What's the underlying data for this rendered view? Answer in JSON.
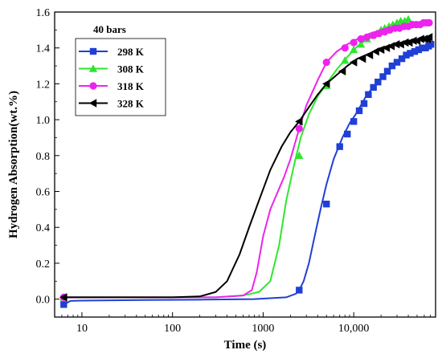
{
  "chart_data": {
    "type": "line",
    "title": "",
    "xlabel": "Time (s)",
    "ylabel": "Hydrogen Absorption(wt.%)",
    "xscale": "log",
    "xlim": [
      5,
      80000
    ],
    "ylim": [
      -0.1,
      1.6
    ],
    "x_ticks": [
      {
        "value": 10,
        "label": "10"
      },
      {
        "value": 100,
        "label": "100"
      },
      {
        "value": 1000,
        "label": "1000"
      },
      {
        "value": 10000,
        "label": "10,000"
      }
    ],
    "y_ticks": [
      {
        "value": 0.0,
        "label": "0.0"
      },
      {
        "value": 0.2,
        "label": "0.2"
      },
      {
        "value": 0.4,
        "label": "0.4"
      },
      {
        "value": 0.6,
        "label": "0.6"
      },
      {
        "value": 0.8,
        "label": "0.8"
      },
      {
        "value": 1.0,
        "label": "1.0"
      },
      {
        "value": 1.2,
        "label": "1.2"
      },
      {
        "value": 1.4,
        "label": "1.4"
      },
      {
        "value": 1.6,
        "label": "1.6"
      }
    ],
    "legend_title": "40 bars",
    "legend_position": "top-left",
    "series": [
      {
        "name": "298 K",
        "color": "#1f3fd6",
        "marker": "square",
        "line": [
          [
            6.3,
            -0.03
          ],
          [
            7.5,
            -0.01
          ],
          [
            10,
            -0.008
          ],
          [
            50,
            -0.005
          ],
          [
            200,
            -0.003
          ],
          [
            800,
            0.0
          ],
          [
            1800,
            0.01
          ],
          [
            2300,
            0.03
          ],
          [
            2500,
            0.05
          ],
          [
            2800,
            0.1
          ],
          [
            3200,
            0.2
          ],
          [
            3700,
            0.35
          ],
          [
            4300,
            0.5
          ],
          [
            5000,
            0.64
          ],
          [
            6000,
            0.78
          ],
          [
            7500,
            0.9
          ],
          [
            9000,
            0.98
          ],
          [
            10500,
            1.03
          ],
          [
            12000,
            1.08
          ],
          [
            14000,
            1.14
          ],
          [
            17000,
            1.19
          ],
          [
            20000,
            1.23
          ],
          [
            25000,
            1.28
          ],
          [
            32000,
            1.33
          ],
          [
            40000,
            1.37
          ],
          [
            50000,
            1.39
          ],
          [
            60000,
            1.41
          ],
          [
            70000,
            1.42
          ]
        ],
        "markers": [
          [
            6.3,
            -0.03
          ],
          [
            2500,
            0.05
          ],
          [
            5000,
            0.53
          ],
          [
            7000,
            0.85
          ],
          [
            8500,
            0.92
          ],
          [
            10000,
            0.99
          ],
          [
            11500,
            1.05
          ],
          [
            13000,
            1.09
          ],
          [
            14500,
            1.14
          ],
          [
            16500,
            1.18
          ],
          [
            18500,
            1.21
          ],
          [
            21000,
            1.24
          ],
          [
            23500,
            1.27
          ],
          [
            26500,
            1.3
          ],
          [
            30000,
            1.32
          ],
          [
            34000,
            1.34
          ],
          [
            38000,
            1.36
          ],
          [
            42000,
            1.37
          ],
          [
            47000,
            1.38
          ],
          [
            52000,
            1.39
          ],
          [
            57000,
            1.4
          ],
          [
            62000,
            1.4
          ],
          [
            67000,
            1.41
          ],
          [
            71000,
            1.42
          ]
        ]
      },
      {
        "name": "308 K",
        "color": "#2ee62e",
        "marker": "triangle",
        "line": [
          [
            6.3,
            0.01
          ],
          [
            20,
            0.01
          ],
          [
            100,
            0.01
          ],
          [
            300,
            0.01
          ],
          [
            600,
            0.02
          ],
          [
            900,
            0.04
          ],
          [
            1200,
            0.1
          ],
          [
            1500,
            0.3
          ],
          [
            1800,
            0.55
          ],
          [
            2200,
            0.75
          ],
          [
            2600,
            0.9
          ],
          [
            3200,
            1.03
          ],
          [
            4000,
            1.13
          ],
          [
            5000,
            1.2
          ],
          [
            6500,
            1.28
          ],
          [
            8500,
            1.35
          ],
          [
            11000,
            1.41
          ],
          [
            15000,
            1.46
          ],
          [
            20000,
            1.5
          ],
          [
            28000,
            1.53
          ],
          [
            35000,
            1.55
          ],
          [
            40000,
            1.56
          ]
        ],
        "markers": [
          [
            6.3,
            0.01
          ],
          [
            2500,
            0.8
          ],
          [
            5000,
            1.19
          ],
          [
            8000,
            1.33
          ],
          [
            10000,
            1.39
          ],
          [
            12000,
            1.42
          ],
          [
            14000,
            1.45
          ],
          [
            16000,
            1.47
          ],
          [
            18000,
            1.48
          ],
          [
            20000,
            1.5
          ],
          [
            22000,
            1.51
          ],
          [
            24500,
            1.52
          ],
          [
            27000,
            1.53
          ],
          [
            30000,
            1.54
          ],
          [
            33000,
            1.55
          ],
          [
            36500,
            1.55
          ],
          [
            40000,
            1.56
          ]
        ]
      },
      {
        "name": "318 K",
        "color": "#ee22ee",
        "marker": "circle",
        "line": [
          [
            6.3,
            0.01
          ],
          [
            20,
            0.01
          ],
          [
            100,
            0.01
          ],
          [
            300,
            0.01
          ],
          [
            600,
            0.02
          ],
          [
            750,
            0.05
          ],
          [
            850,
            0.15
          ],
          [
            1000,
            0.35
          ],
          [
            1200,
            0.5
          ],
          [
            1400,
            0.58
          ],
          [
            1700,
            0.68
          ],
          [
            2000,
            0.78
          ],
          [
            2500,
            0.95
          ],
          [
            3000,
            1.08
          ],
          [
            4000,
            1.22
          ],
          [
            5000,
            1.32
          ],
          [
            6500,
            1.38
          ],
          [
            8500,
            1.42
          ],
          [
            11000,
            1.45
          ],
          [
            15000,
            1.48
          ],
          [
            20000,
            1.5
          ],
          [
            28000,
            1.52
          ],
          [
            40000,
            1.53
          ],
          [
            55000,
            1.54
          ],
          [
            68000,
            1.55
          ]
        ],
        "markers": [
          [
            6.3,
            0.01
          ],
          [
            2500,
            0.95
          ],
          [
            5000,
            1.32
          ],
          [
            8000,
            1.4
          ],
          [
            10000,
            1.43
          ],
          [
            12000,
            1.45
          ],
          [
            14000,
            1.46
          ],
          [
            16500,
            1.47
          ],
          [
            19000,
            1.48
          ],
          [
            22000,
            1.49
          ],
          [
            25000,
            1.5
          ],
          [
            28500,
            1.51
          ],
          [
            32000,
            1.51
          ],
          [
            36000,
            1.52
          ],
          [
            40000,
            1.52
          ],
          [
            44500,
            1.53
          ],
          [
            49000,
            1.53
          ],
          [
            54000,
            1.53
          ],
          [
            59000,
            1.54
          ],
          [
            64000,
            1.54
          ],
          [
            68000,
            1.54
          ]
        ]
      },
      {
        "name": "328 K",
        "color": "#000000",
        "marker": "triangle-left",
        "line": [
          [
            6.3,
            0.01
          ],
          [
            20,
            0.01
          ],
          [
            100,
            0.01
          ],
          [
            200,
            0.015
          ],
          [
            300,
            0.04
          ],
          [
            400,
            0.1
          ],
          [
            550,
            0.25
          ],
          [
            700,
            0.4
          ],
          [
            900,
            0.55
          ],
          [
            1200,
            0.72
          ],
          [
            1600,
            0.85
          ],
          [
            2000,
            0.93
          ],
          [
            2500,
            0.99
          ],
          [
            3200,
            1.07
          ],
          [
            4000,
            1.14
          ],
          [
            5000,
            1.2
          ],
          [
            6500,
            1.25
          ],
          [
            8500,
            1.3
          ],
          [
            11000,
            1.34
          ],
          [
            15000,
            1.37
          ],
          [
            20000,
            1.4
          ],
          [
            28000,
            1.42
          ],
          [
            40000,
            1.44
          ],
          [
            55000,
            1.45
          ],
          [
            68000,
            1.46
          ]
        ],
        "markers": [
          [
            6.3,
            0.01
          ],
          [
            2500,
            0.99
          ],
          [
            5000,
            1.2
          ],
          [
            7500,
            1.27
          ],
          [
            10000,
            1.32
          ],
          [
            12500,
            1.34
          ],
          [
            15000,
            1.36
          ],
          [
            17500,
            1.38
          ],
          [
            20000,
            1.39
          ],
          [
            23000,
            1.4
          ],
          [
            26000,
            1.41
          ],
          [
            29500,
            1.42
          ],
          [
            33000,
            1.42
          ],
          [
            37000,
            1.43
          ],
          [
            41000,
            1.43
          ],
          [
            45500,
            1.44
          ],
          [
            50000,
            1.44
          ],
          [
            55000,
            1.45
          ],
          [
            60000,
            1.45
          ],
          [
            65000,
            1.45
          ],
          [
            68000,
            1.46
          ]
        ]
      }
    ]
  }
}
